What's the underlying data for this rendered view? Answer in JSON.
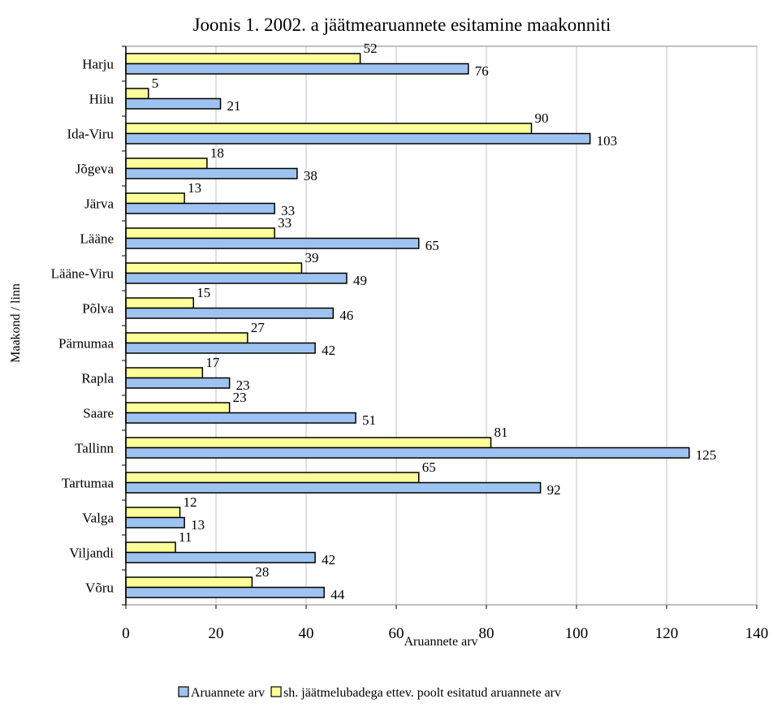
{
  "chart_data": {
    "type": "bar",
    "orientation": "horizontal",
    "title": "Joonis 1.  2002. a jäätmearuannete esitamine maakonniti",
    "xlabel": "Aruannete arv",
    "ylabel": "Maakond / linn",
    "xlim": [
      0,
      140
    ],
    "xticks": [
      0,
      20,
      40,
      60,
      80,
      100,
      120,
      140
    ],
    "grid": "vertical",
    "legend_position": "bottom",
    "categories": [
      "Harju",
      "Hiiu",
      "Ida-Viru",
      "Jõgeva",
      "Järva",
      "Lääne",
      "Lääne-Viru",
      "Põlva",
      "Pärnumaa",
      "Rapla",
      "Saare",
      "Tallinn",
      "Tartumaa",
      "Valga",
      "Viljandi",
      "Võru"
    ],
    "series": [
      {
        "name": "Aruannete arv",
        "color": "#9ec3f0",
        "values": [
          76,
          21,
          103,
          38,
          33,
          65,
          49,
          46,
          42,
          23,
          51,
          125,
          92,
          13,
          42,
          44
        ]
      },
      {
        "name": "sh. jäätmelubadega ettev. poolt esitatud aruannete arv",
        "color": "#ffff99",
        "values": [
          52,
          5,
          90,
          18,
          13,
          33,
          39,
          15,
          27,
          17,
          23,
          81,
          65,
          12,
          11,
          28
        ]
      }
    ]
  }
}
